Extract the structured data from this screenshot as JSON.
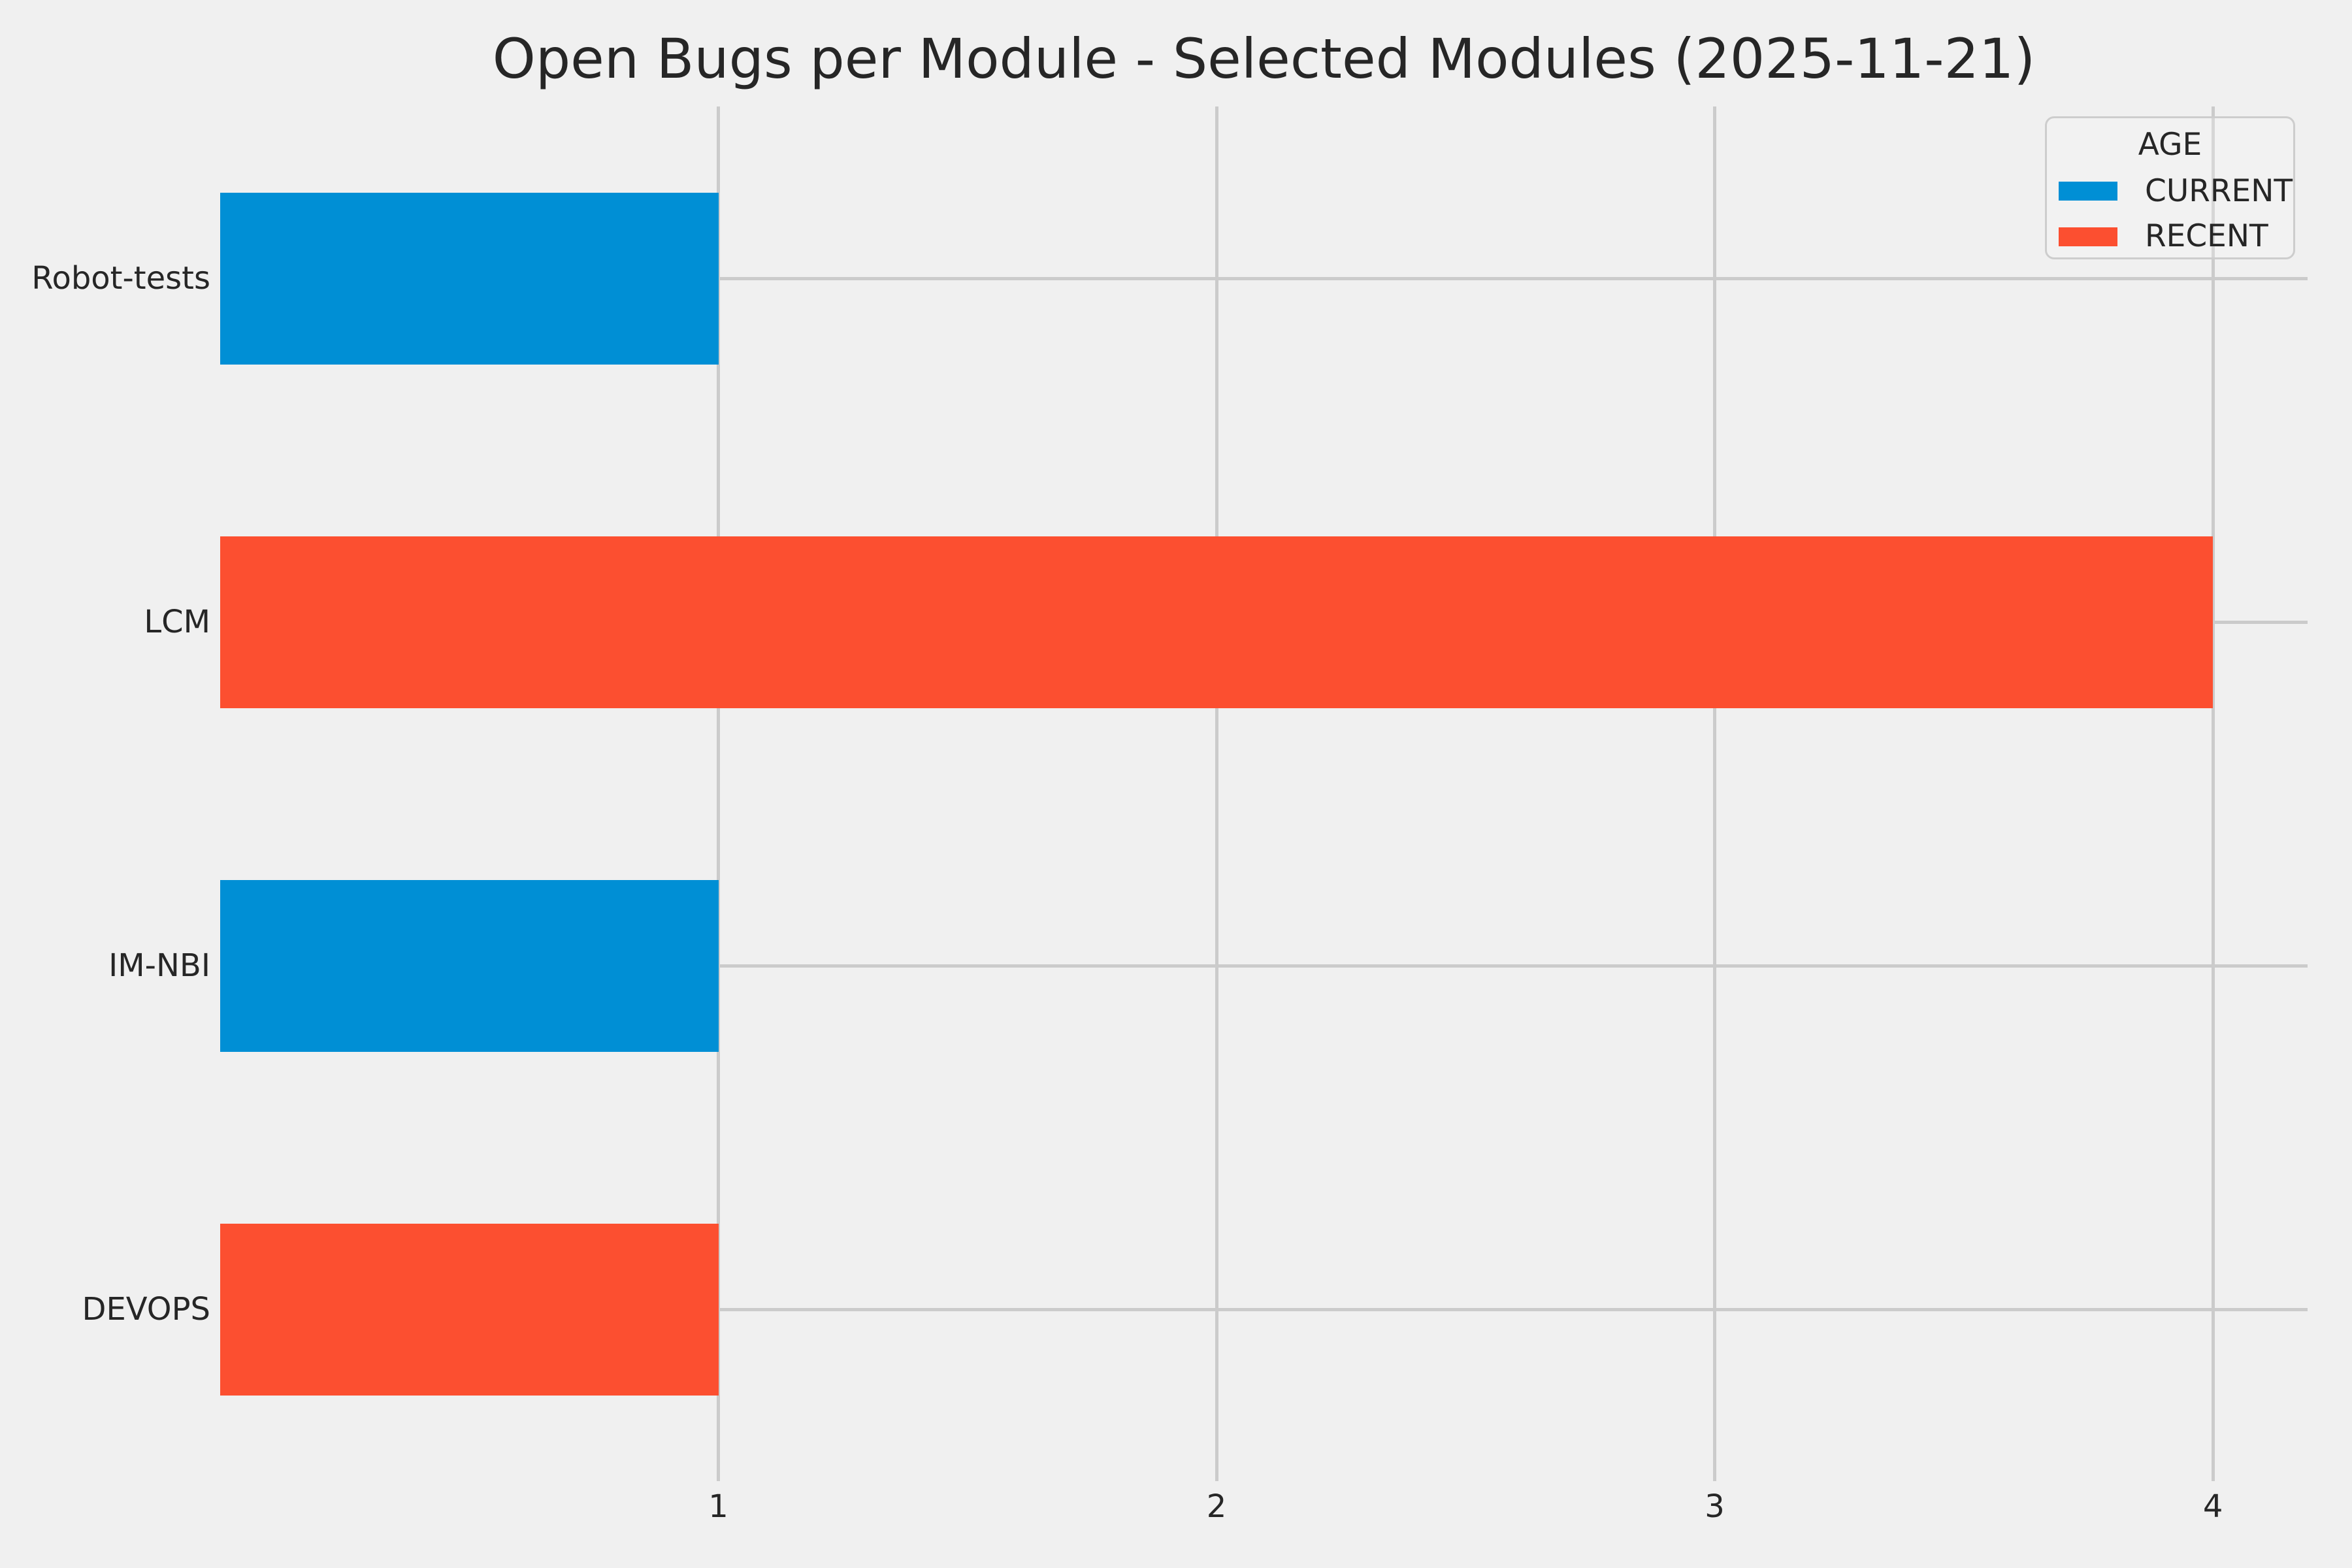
{
  "figure": {
    "background": "#f0f0f0",
    "text_color": "#262626",
    "title": "Open Bugs per Module - Selected Modules (2025-11-21)"
  },
  "chart_data": {
    "type": "bar",
    "orientation": "horizontal",
    "title": "Open Bugs per Module - Selected Modules (2025-11-21)",
    "categories": [
      "Robot-tests",
      "LCM",
      "IM-NBI",
      "DEVOPS"
    ],
    "values": [
      1,
      4,
      1,
      1
    ],
    "groups": [
      "CURRENT",
      "RECENT",
      "CURRENT",
      "RECENT"
    ],
    "colors": {
      "CURRENT": "#008fd5",
      "RECENT": "#fc4f30"
    },
    "xlabel": "",
    "ylabel": "",
    "x_ticks": [
      "1",
      "2",
      "3",
      "4"
    ],
    "x_tick_values": [
      1,
      2,
      3,
      4
    ],
    "xlim": [
      0,
      4.19
    ],
    "grid": true,
    "grid_color": "#cbcbcb",
    "bar_thickness_ratio": 0.5,
    "legend": {
      "title": "AGE",
      "position": "upper right",
      "entries": [
        {
          "label": "CURRENT",
          "color": "#008fd5"
        },
        {
          "label": "RECENT",
          "color": "#fc4f30"
        }
      ]
    }
  }
}
